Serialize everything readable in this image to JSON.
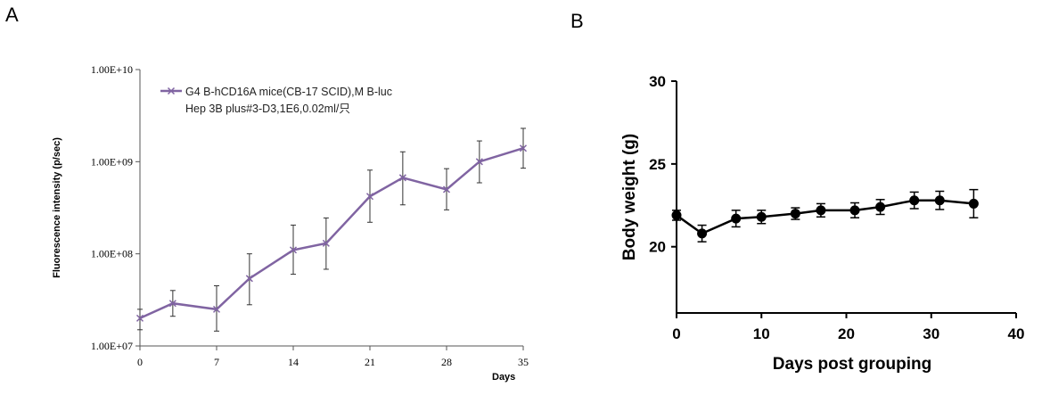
{
  "panel_a_letter": "A",
  "panel_b_letter": "B",
  "chart_data": [
    {
      "type": "line",
      "panel": "A",
      "xlabel": "Days",
      "ylabel": "Fluorescence intensity (p/sec)",
      "y_scale": "log",
      "xlim": [
        0,
        35
      ],
      "ylim": [
        10000000,
        10000000000
      ],
      "x_ticks": [
        0,
        7,
        14,
        21,
        28,
        35
      ],
      "x_tick_labels": [
        "0",
        "7",
        "14",
        "21",
        "28",
        "35"
      ],
      "y_ticks": [
        10000000,
        100000000,
        1000000000,
        10000000000
      ],
      "y_tick_labels": [
        "1.00E+07",
        "1.00E+08",
        "1.00E+09",
        "1.00E+10"
      ],
      "legend_position": "top-left",
      "legend_lines": [
        "G4  B-hCD16A mice(CB-17 SCID),M B-luc",
        "Hep 3B plus#3-D3,1E6,0.02ml/只"
      ],
      "line_color": "#8064a2",
      "series": [
        {
          "x": [
            0,
            3,
            7,
            10,
            14,
            17,
            21,
            24,
            28,
            31,
            35
          ],
          "y": [
            20000000,
            29000000,
            25000000,
            54000000,
            110000000,
            130000000,
            420000000,
            670000000,
            500000000,
            1000000000,
            1400000000
          ],
          "err_upper": [
            25000000,
            40000000,
            45000000,
            100000000,
            205000000,
            245000000,
            810000000,
            1280000000,
            840000000,
            1680000000,
            2300000000
          ],
          "err_lower": [
            15000000,
            21000000,
            14500000,
            28000000,
            60000000,
            68000000,
            220000000,
            340000000,
            300000000,
            590000000,
            850000000
          ]
        }
      ]
    },
    {
      "type": "line",
      "panel": "B",
      "xlabel": "Days post grouping",
      "ylabel": "Body weight (g)",
      "xlim": [
        0,
        40
      ],
      "ylim": [
        16,
        30
      ],
      "x_ticks": [
        0,
        10,
        20,
        30,
        40
      ],
      "x_tick_labels": [
        "0",
        "10",
        "20",
        "30",
        "40"
      ],
      "y_ticks": [
        20,
        25,
        30
      ],
      "y_tick_labels": [
        "20",
        "25",
        "30"
      ],
      "line_color": "#000000",
      "series": [
        {
          "x": [
            0,
            3,
            7,
            10,
            14,
            17,
            21,
            24,
            28,
            31,
            35
          ],
          "y": [
            21.9,
            20.8,
            21.7,
            21.8,
            22.0,
            22.2,
            22.2,
            22.4,
            22.8,
            22.8,
            22.6
          ],
          "err": [
            0.3,
            0.5,
            0.5,
            0.4,
            0.35,
            0.4,
            0.45,
            0.45,
            0.5,
            0.55,
            0.85
          ]
        }
      ]
    }
  ]
}
